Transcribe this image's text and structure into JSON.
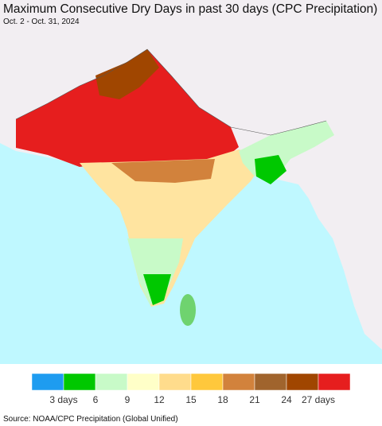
{
  "header": {
    "title": "Maximum Consecutive Dry Days in past 30 days (CPC Precipitation)",
    "subtitle": "Oct. 2 - Oct. 31, 2024"
  },
  "legend": {
    "colors": [
      "#1e9cf0",
      "#00c800",
      "#c8fac8",
      "#ffffc8",
      "#ffdc8c",
      "#ffc83c",
      "#d2823c",
      "#a0642d",
      "#a04600",
      "#e61e1e"
    ],
    "labels": [
      "3 days",
      "6",
      "9",
      "12",
      "15",
      "18",
      "21",
      "24",
      "27 days"
    ]
  },
  "footer": {
    "source": "Source: NOAA/CPC Precipitation (Global Unified)"
  }
}
